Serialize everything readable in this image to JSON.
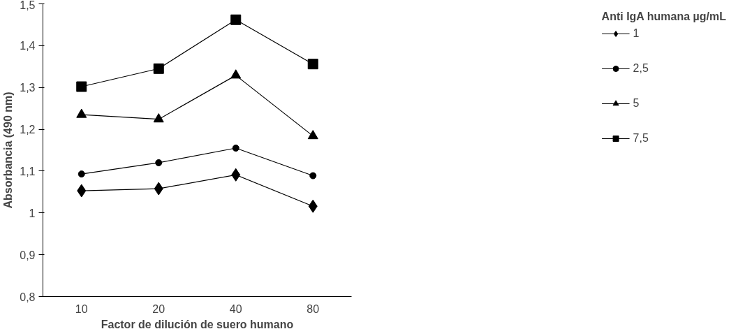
{
  "chart_data": {
    "type": "line",
    "xlabel": "Factor de dilución de suero humano",
    "ylabel": "Absorbancia (490 nm)",
    "legend_title": "Anti IgA humana µg/mL",
    "categories": [
      "10",
      "20",
      "40",
      "80"
    ],
    "series": [
      {
        "name": "1",
        "color": "#000000",
        "marker": "diamond",
        "values": [
          1.053,
          1.058,
          1.091,
          1.016
        ]
      },
      {
        "name": "2,5",
        "color": "#000000",
        "marker": "circle",
        "values": [
          1.093,
          1.12,
          1.155,
          1.089
        ]
      },
      {
        "name": "5",
        "color": "#000000",
        "marker": "triangle",
        "values": [
          1.235,
          1.224,
          1.329,
          1.184
        ]
      },
      {
        "name": "7,5",
        "color": "#000000",
        "marker": "square",
        "values": [
          1.302,
          1.345,
          1.462,
          1.356
        ]
      }
    ],
    "ylim": [
      0.8,
      1.5
    ],
    "yticks": [
      {
        "value": 0.8,
        "label": "0,8"
      },
      {
        "value": 0.9,
        "label": "0,9"
      },
      {
        "value": 1,
        "label": "1"
      },
      {
        "value": 1.1,
        "label": "1,1"
      },
      {
        "value": 1.2,
        "label": "1,2"
      },
      {
        "value": 1.3,
        "label": "1,3"
      },
      {
        "value": 1.4,
        "label": "1,4"
      },
      {
        "value": 1.5,
        "label": "1,5"
      }
    ],
    "grid": false,
    "legend": "right",
    "line_style": "solid"
  }
}
